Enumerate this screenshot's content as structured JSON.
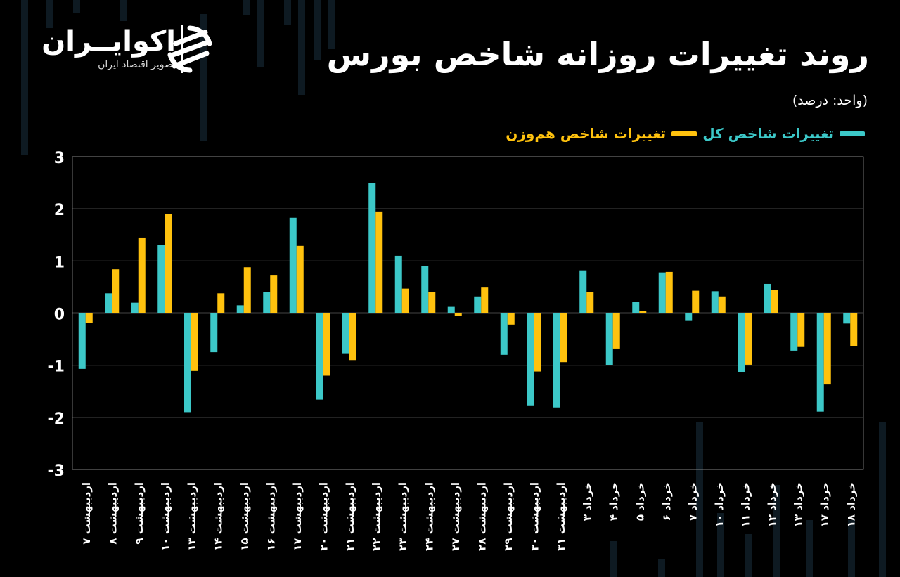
{
  "header": {
    "title": "روند تغییرات روزانه شاخص بورس",
    "unit": "(واحد: درصد)"
  },
  "brand": {
    "name": "اکوایــران",
    "subtitle": "تصویر اقتصاد ایران",
    "logo_icon": "ecoiran-swirl-icon"
  },
  "colors": {
    "background": "#000000",
    "series_total": "#3cc8c8",
    "series_equal": "#ffc20e",
    "grid": "#8a8a8a",
    "decor": "#0e1a22"
  },
  "chart_data": {
    "type": "bar",
    "ylim": [
      -3,
      3
    ],
    "yticks": [
      "3",
      "2",
      "1",
      "0",
      "-1",
      "-2",
      "-3"
    ],
    "ytick_values": [
      3,
      2,
      1,
      0,
      -1,
      -2,
      -3
    ],
    "grid": true,
    "legend_position": "top-right",
    "categories": [
      "۷ اردیبهشت",
      "۸ اردیبهشت",
      "۹ اردیبهشت",
      "۱۰ اردیبهشت",
      "۱۳ اردیبهشت",
      "۱۴ اردیبهشت",
      "۱۵ اردیبهشت",
      "۱۶ اردیبهشت",
      "۱۷ اردیبهشت",
      "۲۰ اردیبهشت",
      "۲۱ اردیبهشت",
      "۲۲ اردیبهشت",
      "۲۳ اردیبهشت",
      "۲۴ اردیبهشت",
      "۲۷ اردیبهشت",
      "۲۸ اردیبهشت",
      "۲۹ اردیبهشت",
      "۳۰ اردیبهشت",
      "۳۱ اردیبهشت",
      "۳ خرداد",
      "۴ خرداد",
      "۵ خرداد",
      "۶ خرداد",
      "۷ خرداد",
      "۱۰ خرداد",
      "۱۱ خرداد",
      "۱۲ خرداد",
      "۱۳ خرداد",
      "۱۷ خرداد",
      "۱۸ خرداد"
    ],
    "series": [
      {
        "name": "تغییرات شاخص کل",
        "color": "#3cc8c8",
        "values": [
          -1.07,
          0.38,
          0.2,
          1.31,
          -1.9,
          -0.75,
          0.15,
          0.41,
          1.83,
          -1.66,
          -0.77,
          2.5,
          1.1,
          0.9,
          0.12,
          0.32,
          -0.8,
          -1.77,
          -1.81,
          0.82,
          -1.0,
          0.22,
          0.78,
          -0.15,
          0.42,
          -1.13,
          0.56,
          -0.72,
          -1.89,
          -0.2
        ]
      },
      {
        "name": "تغییرات شاخص هم‌وزن",
        "color": "#ffc20e",
        "values": [
          -0.19,
          0.84,
          1.45,
          1.9,
          -1.11,
          0.38,
          0.88,
          0.72,
          1.29,
          -1.2,
          -0.9,
          1.95,
          0.47,
          0.41,
          -0.05,
          0.49,
          -0.22,
          -1.12,
          -0.94,
          0.4,
          -0.68,
          0.04,
          0.79,
          0.43,
          0.32,
          -0.99,
          0.45,
          -0.65,
          -1.37,
          -0.63
        ]
      }
    ]
  }
}
